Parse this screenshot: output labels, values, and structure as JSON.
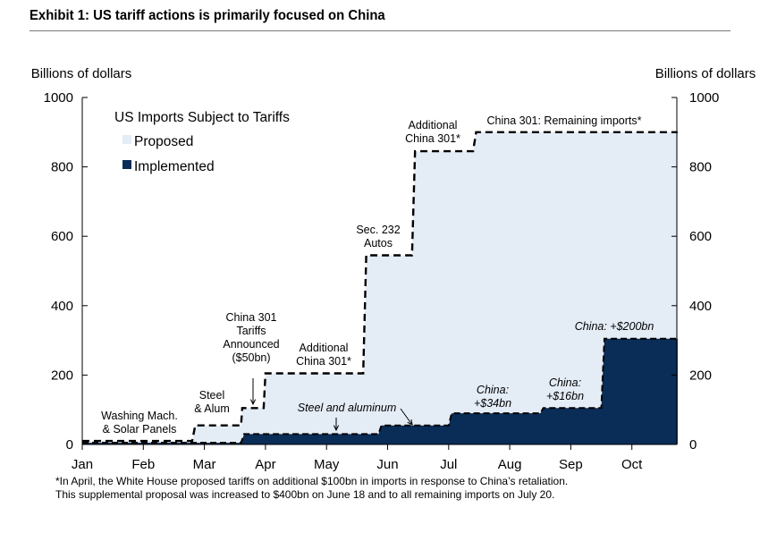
{
  "title": "Exhibit 1: US tariff actions is primarily focused on China",
  "footnote": [
    "*In  April, the White House proposed tariffs on additional $100bn in imports in response to China’s retaliation.",
    "This supplemental proposal was increased to $400bn on June 18 and to all remaining imports on July 20."
  ],
  "colors": {
    "proposed_fill": "#e4ecf6",
    "implemented_fill": "#0a2d57",
    "dashed_line": "#000000"
  },
  "chart_data": {
    "type": "area",
    "title": "",
    "legend_title": "US Imports Subject to Tariffs",
    "legend_position": "top-left",
    "ylabel_left": "Billions of dollars",
    "ylabel_right": "Billions of dollars",
    "ylim": [
      0,
      1000
    ],
    "y_ticks": [
      0,
      200,
      400,
      600,
      800,
      1000
    ],
    "x_ticks": [
      "Jan",
      "Feb",
      "Mar",
      "Apr",
      "May",
      "Jun",
      "Jul",
      "Aug",
      "Sep",
      "Oct"
    ],
    "x_range_months": [
      0,
      9.75
    ],
    "grid": false,
    "series": [
      {
        "name": "Proposed",
        "style": "dashed-step",
        "points": [
          [
            0,
            10
          ],
          [
            1.8,
            10
          ],
          [
            1.85,
            55
          ],
          [
            2.6,
            55
          ],
          [
            2.62,
            105
          ],
          [
            2.97,
            105
          ],
          [
            3.0,
            205
          ],
          [
            4.6,
            205
          ],
          [
            4.65,
            545
          ],
          [
            5.4,
            545
          ],
          [
            5.45,
            845
          ],
          [
            6.4,
            845
          ],
          [
            6.45,
            900
          ],
          [
            9.75,
            900
          ]
        ]
      },
      {
        "name": "Implemented",
        "style": "filled-step",
        "points": [
          [
            0,
            5
          ],
          [
            2.6,
            5
          ],
          [
            2.65,
            30
          ],
          [
            4.85,
            30
          ],
          [
            4.9,
            55
          ],
          [
            6.0,
            55
          ],
          [
            6.05,
            90
          ],
          [
            7.5,
            90
          ],
          [
            7.55,
            105
          ],
          [
            8.5,
            105
          ],
          [
            8.55,
            305
          ],
          [
            9.75,
            305
          ]
        ]
      }
    ],
    "annotations": [
      {
        "lines": [
          "Washing Mach.",
          "& Solar Panels"
        ],
        "style": "normal"
      },
      {
        "lines": [
          "Steel",
          "& Alum"
        ],
        "style": "normal"
      },
      {
        "lines": [
          "China 301",
          "Tariffs",
          "Announced",
          "($50bn)"
        ],
        "style": "normal"
      },
      {
        "lines": [
          "Additional",
          "China 301*"
        ],
        "style": "normal"
      },
      {
        "lines": [
          "Sec. 232",
          "Autos"
        ],
        "style": "normal"
      },
      {
        "lines": [
          "Additional",
          "China 301*"
        ],
        "style": "normal"
      },
      {
        "lines": [
          "China 301: Remaining imports*"
        ],
        "style": "normal"
      },
      {
        "lines": [
          "Steel and aluminum"
        ],
        "style": "italic"
      },
      {
        "lines": [
          "China:",
          "+$34bn"
        ],
        "style": "italic"
      },
      {
        "lines": [
          "China:",
          "+$16bn"
        ],
        "style": "italic"
      },
      {
        "lines": [
          "China: +$200bn"
        ],
        "style": "italic"
      }
    ]
  }
}
